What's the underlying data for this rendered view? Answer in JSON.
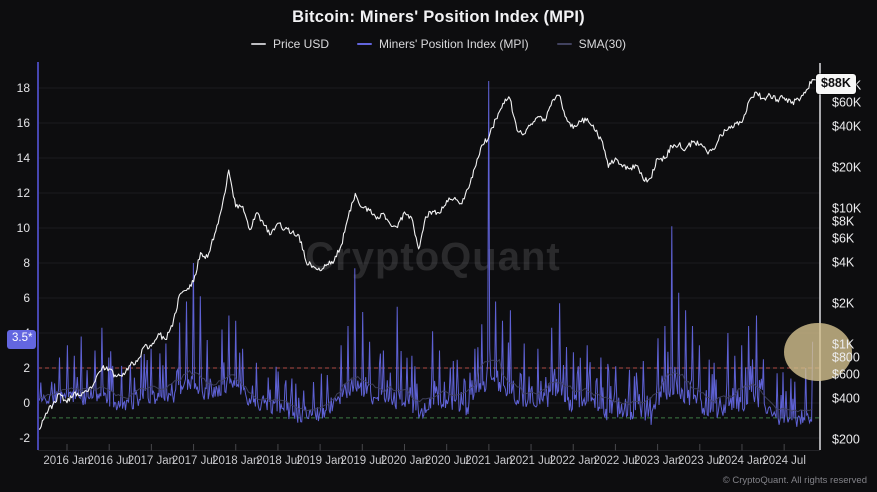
{
  "title": "Bitcoin: Miners' Position Index (MPI)",
  "watermark": "CryptoQuant",
  "footer": {
    "copyright": "© CryptoQuant. All rights reserved"
  },
  "legend": {
    "items": [
      {
        "label": "Price USD",
        "color": "#bdbdc2"
      },
      {
        "label": "Miners' Position Index (MPI)",
        "color": "#6265dd"
      },
      {
        "label": "SMA(30)",
        "color": "#41425f"
      }
    ]
  },
  "annotations": {
    "current_mpi_label": "3.5*",
    "current_mpi_value": 3.5,
    "mpi_badge_color": "#6366e0",
    "current_price_label": "$88K",
    "highlight_circle": {
      "center_value_usd": 800,
      "color": "#d5c28e",
      "opacity": 0.8
    }
  },
  "chart_data": {
    "type": "line",
    "x_start": "2015-09",
    "x_interval": "monthly",
    "x_tick_labels": [
      "2016 Jan",
      "2016 Jul",
      "2017 Jan",
      "2017 Jul",
      "2018 Jan",
      "2018 Jul",
      "2019 Jan",
      "2019 Jul",
      "2020 Jan",
      "2020 Jul",
      "2021 Jan",
      "2021 Jul",
      "2022 Jan",
      "2022 Jul",
      "2023 Jan",
      "2023 Jul",
      "2024 Jan",
      "2024 Jul"
    ],
    "left_axis": {
      "label": "Miners' Position Index",
      "ticks": [
        18,
        16,
        14,
        12,
        10,
        8,
        6,
        4,
        2,
        0,
        -2
      ],
      "range": [
        -2.7,
        19.3
      ],
      "grid": true
    },
    "right_axis": {
      "label": "Price USD",
      "scale": "log",
      "ticks": [
        {
          "label": "$80K",
          "value": 80000
        },
        {
          "label": "$60K",
          "value": 60000
        },
        {
          "label": "$40K",
          "value": 40000
        },
        {
          "label": "$20K",
          "value": 20000
        },
        {
          "label": "$10K",
          "value": 10000
        },
        {
          "label": "$8K",
          "value": 8000
        },
        {
          "label": "$6K",
          "value": 6000
        },
        {
          "label": "$4K",
          "value": 4000
        },
        {
          "label": "$2K",
          "value": 2000
        },
        {
          "label": "$1K",
          "value": 1000
        },
        {
          "label": "$800",
          "value": 800
        },
        {
          "label": "$600",
          "value": 600
        },
        {
          "label": "$400",
          "value": 400
        },
        {
          "label": "$200",
          "value": 200
        }
      ]
    },
    "thresholds": {
      "sell_signal": {
        "value": 2,
        "color": "#b04a44",
        "style": "dashed"
      },
      "low_zone": {
        "value": -0.85,
        "color": "#3e7a45",
        "style": "dashed"
      }
    },
    "series": [
      {
        "name": "Price USD",
        "monthly_close_usd": [
          236,
          310,
          360,
          430,
          370,
          437,
          415,
          448,
          530,
          670,
          655,
          575,
          610,
          700,
          745,
          960,
          965,
          1190,
          1080,
          1350,
          2300,
          2480,
          2870,
          4700,
          4340,
          6450,
          9900,
          19000,
          10200,
          10300,
          6930,
          9240,
          7490,
          6390,
          7730,
          7030,
          6620,
          6300,
          4020,
          3740,
          3460,
          3850,
          4100,
          5320,
          8550,
          12800,
          10080,
          9600,
          8280,
          9150,
          7550,
          7190,
          9350,
          8530,
          5000,
          8620,
          9450,
          9140,
          11350,
          11650,
          10780,
          13800,
          19700,
          29000,
          33100,
          45200,
          58800,
          63500,
          37300,
          35000,
          41500,
          47100,
          43800,
          61300,
          67500,
          46200,
          38500,
          43200,
          45500,
          37700,
          31800,
          19900,
          23300,
          20050,
          19400,
          20500,
          16000,
          16540,
          23100,
          23100,
          28500,
          29200,
          27200,
          30500,
          29200,
          26000,
          26900,
          34600,
          37700,
          42200,
          42600,
          61200,
          71300,
          63800,
          67500,
          62700,
          64600,
          59000,
          63300,
          70200,
          88000
        ]
      },
      {
        "name": "Miners' Position Index (MPI)",
        "monthly_base": [
          0.2,
          0.3,
          0.4,
          0.5,
          0.6,
          0.5,
          0.4,
          0.3,
          0.4,
          0.5,
          0.3,
          0.1,
          0.0,
          0.1,
          0.2,
          0.4,
          0.5,
          0.4,
          0.5,
          0.4,
          0.8,
          1.2,
          1.0,
          0.8,
          0.6,
          0.8,
          1.0,
          1.2,
          1.0,
          0.8,
          0.3,
          0.2,
          0.0,
          -0.1,
          -0.2,
          -0.3,
          -0.5,
          -0.6,
          -0.5,
          -0.7,
          -0.5,
          -0.3,
          0.0,
          0.3,
          0.8,
          1.2,
          0.8,
          0.5,
          0.2,
          0.3,
          0.0,
          0.2,
          0.2,
          0.0,
          -0.4,
          -0.2,
          0.3,
          0.1,
          0.0,
          0.2,
          -0.2,
          -0.3,
          0.3,
          0.8,
          1.5,
          1.2,
          0.8,
          0.8,
          0.3,
          0.0,
          0.2,
          0.3,
          0.2,
          0.5,
          0.6,
          0.2,
          0.0,
          0.2,
          0.3,
          0.0,
          -0.2,
          -0.5,
          -0.3,
          -0.4,
          -0.6,
          -0.4,
          -0.5,
          -0.8,
          0.3,
          0.5,
          0.8,
          0.6,
          0.5,
          0.3,
          0.0,
          -0.3,
          -0.4,
          -0.3,
          -0.2,
          -0.3,
          -0.2,
          0.2,
          0.3,
          -0.2,
          -0.5,
          -0.7,
          -0.8,
          -1.0,
          -0.9,
          -0.8,
          -0.6
        ],
        "spikes_month_value": [
          [
            3,
            2.6
          ],
          [
            4,
            3.3
          ],
          [
            5,
            2.7
          ],
          [
            6,
            3.8
          ],
          [
            8,
            3.0
          ],
          [
            9,
            4.3
          ],
          [
            10,
            2.6
          ],
          [
            13,
            2.2
          ],
          [
            15,
            2.8
          ],
          [
            16,
            3.1
          ],
          [
            18,
            3.4
          ],
          [
            20,
            4.6
          ],
          [
            21,
            5.8
          ],
          [
            22,
            8.0
          ],
          [
            23,
            6.1
          ],
          [
            24,
            3.6
          ],
          [
            26,
            4.2
          ],
          [
            27,
            5.0
          ],
          [
            28,
            4.7
          ],
          [
            29,
            3.1
          ],
          [
            31,
            2.3
          ],
          [
            34,
            1.8
          ],
          [
            36,
            1.4
          ],
          [
            39,
            1.2
          ],
          [
            41,
            1.6
          ],
          [
            43,
            3.3
          ],
          [
            44,
            4.4
          ],
          [
            45,
            7.7
          ],
          [
            46,
            5.2
          ],
          [
            47,
            3.5
          ],
          [
            49,
            3.0
          ],
          [
            51,
            5.5
          ],
          [
            53,
            2.7
          ],
          [
            56,
            4.1
          ],
          [
            57,
            3.0
          ],
          [
            59,
            2.4
          ],
          [
            62,
            3.1
          ],
          [
            63,
            4.5
          ],
          [
            64,
            18.4
          ],
          [
            65,
            5.8
          ],
          [
            66,
            4.7
          ],
          [
            67,
            5.3
          ],
          [
            69,
            3.4
          ],
          [
            71,
            3.1
          ],
          [
            73,
            4.3
          ],
          [
            74,
            5.7
          ],
          [
            75,
            3.2
          ],
          [
            76,
            2.9
          ],
          [
            78,
            3.3
          ],
          [
            80,
            2.6
          ],
          [
            82,
            2.1
          ],
          [
            84,
            1.9
          ],
          [
            86,
            2.4
          ],
          [
            88,
            3.7
          ],
          [
            89,
            4.4
          ],
          [
            90,
            10.1
          ],
          [
            91,
            6.3
          ],
          [
            92,
            5.3
          ],
          [
            93,
            4.4
          ],
          [
            94,
            3.3
          ],
          [
            96,
            2.3
          ],
          [
            98,
            4.0
          ],
          [
            99,
            2.7
          ],
          [
            100,
            3.3
          ],
          [
            101,
            4.4
          ],
          [
            102,
            5.0
          ],
          [
            103,
            2.5
          ],
          [
            105,
            1.7
          ],
          [
            107,
            1.4
          ],
          [
            109,
            2.0
          ],
          [
            110,
            3.5
          ]
        ]
      },
      {
        "name": "SMA(30)",
        "derived": "30-period moving average of the MPI series"
      }
    ]
  }
}
